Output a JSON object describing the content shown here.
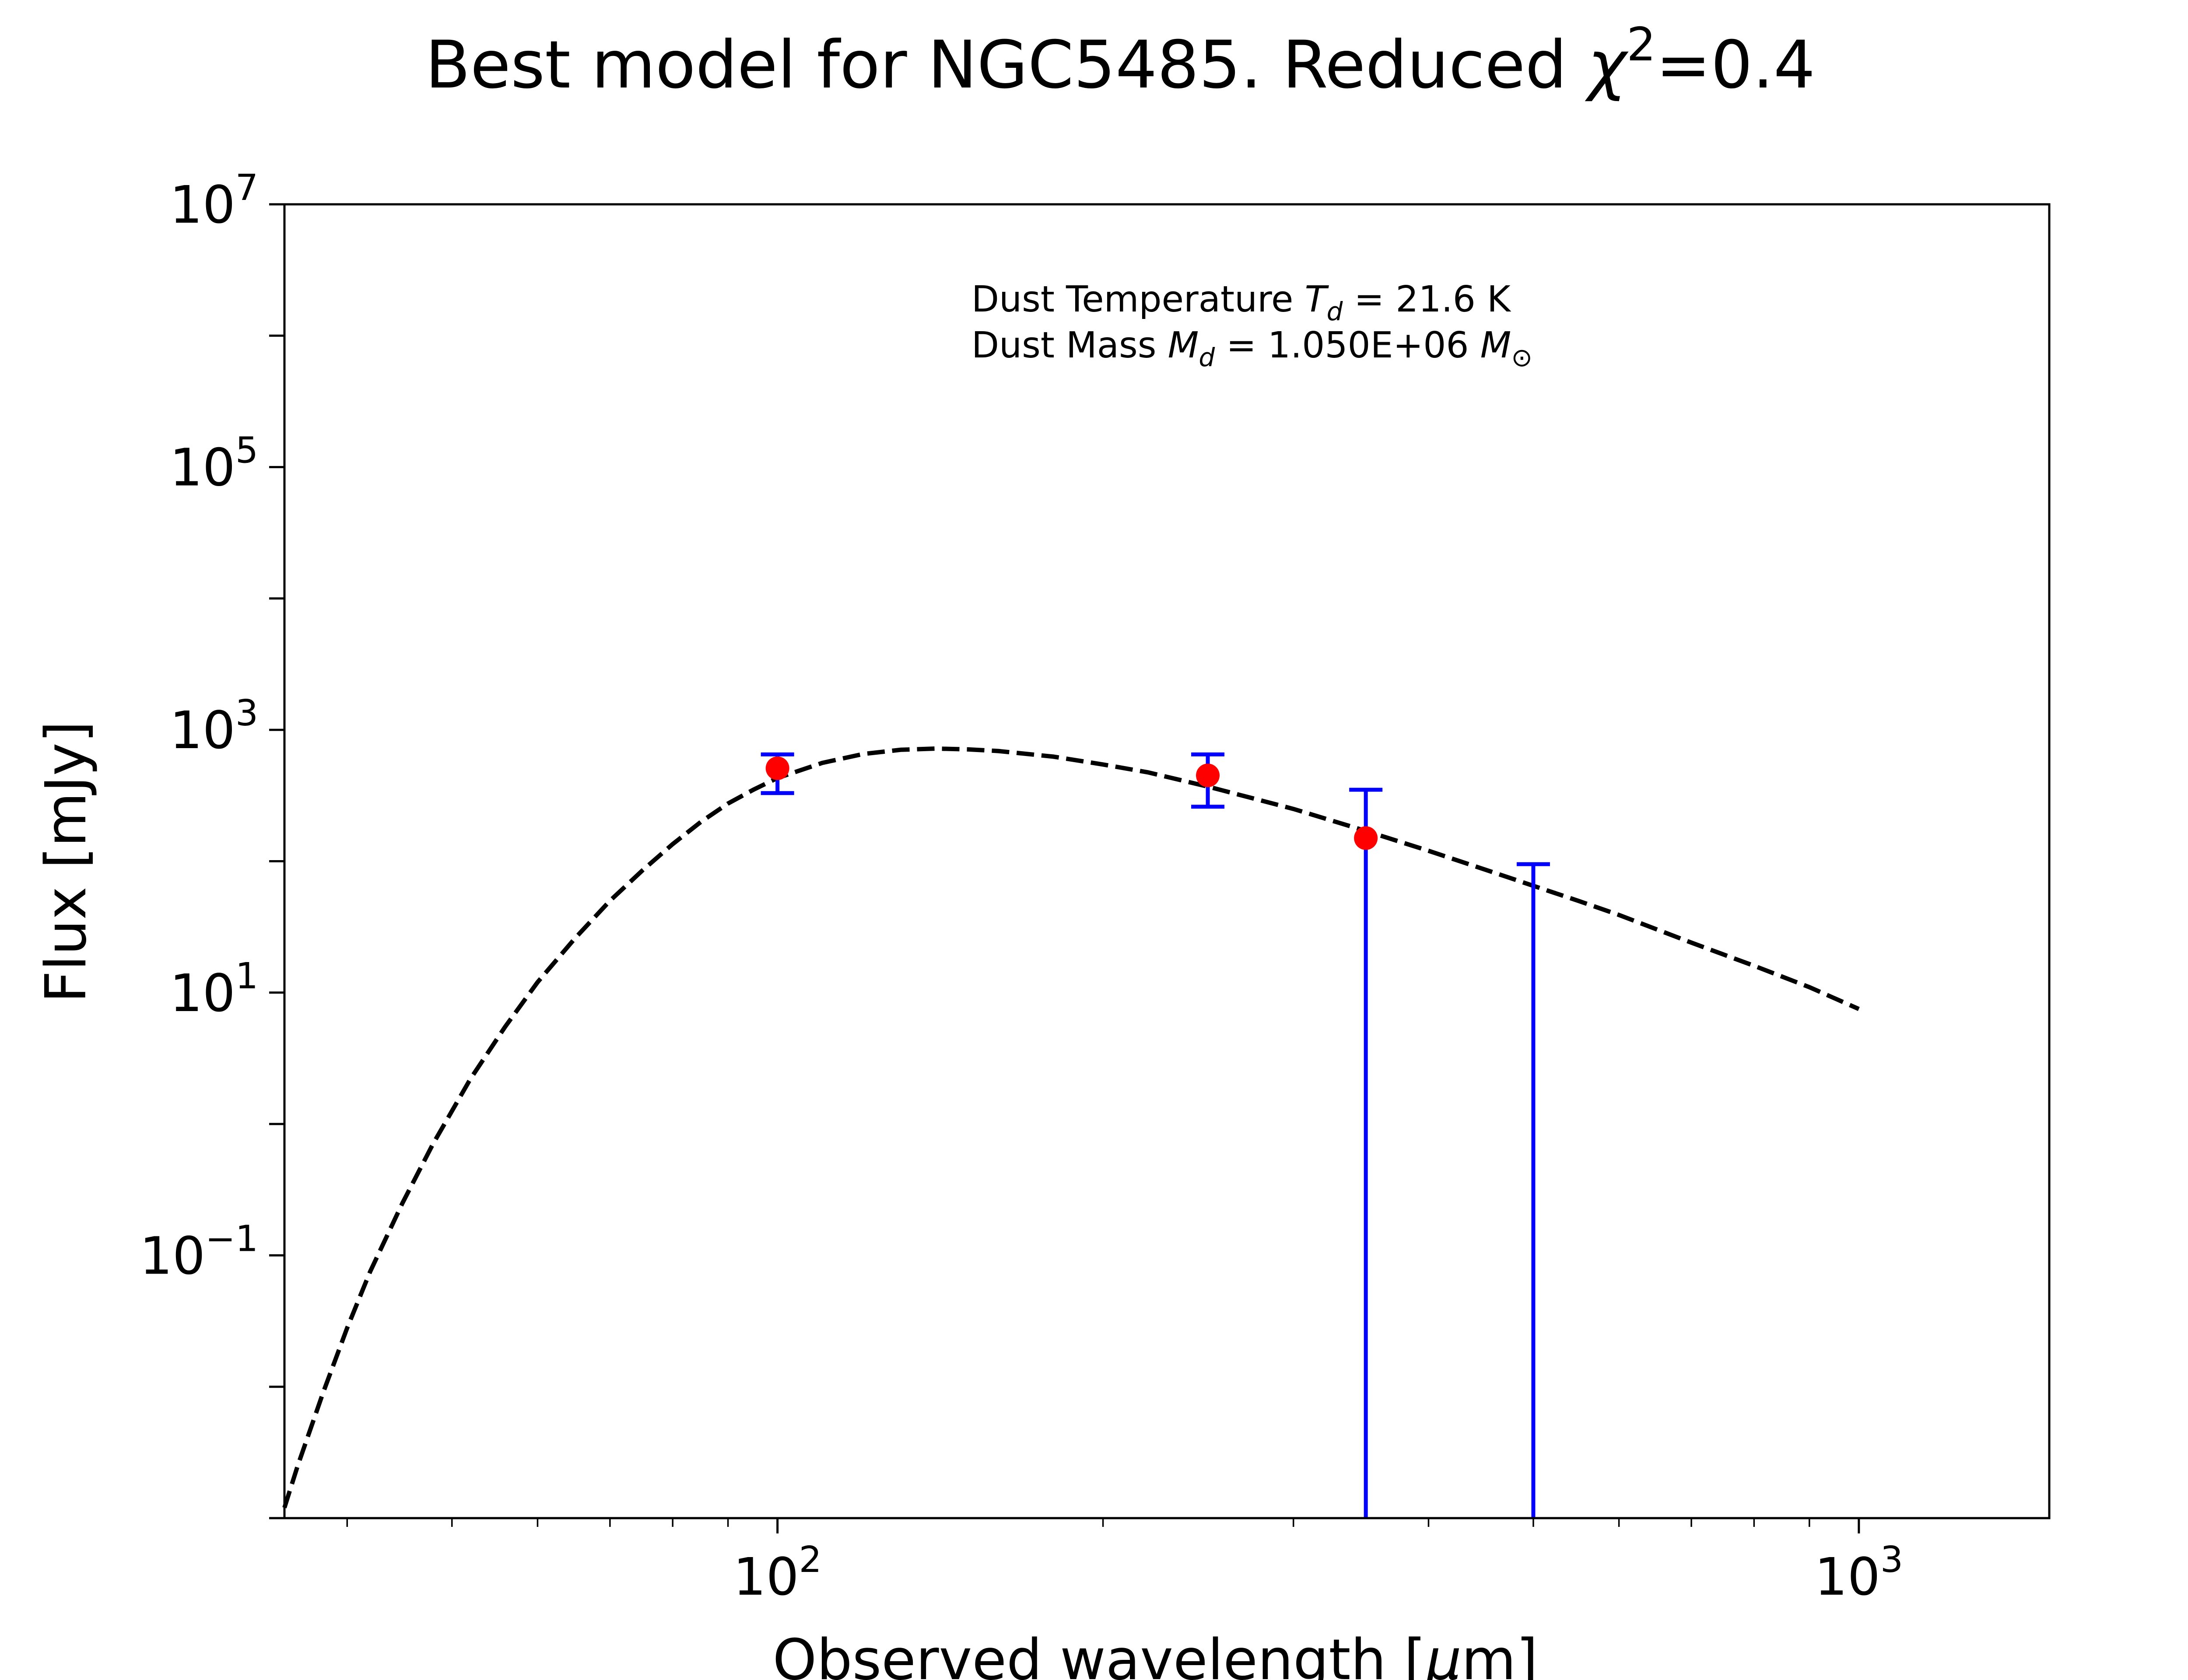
{
  "chart_data": {
    "type": "scatter",
    "title_main": "Best model for NGC5485. Reduced ",
    "title_symbol": "χ",
    "title_exp": "2",
    "title_value": "=0.4",
    "xlabel_main": "Observed wavelength [",
    "xlabel_mu": "μ",
    "xlabel_end": "m]",
    "ylabel": "Flux [mJy]",
    "xscale": "log",
    "yscale": "log",
    "xlim": [
      35,
      1500
    ],
    "ylim": [
      0.001,
      10000000
    ],
    "x_ticks": [
      {
        "value": 100,
        "base": "10",
        "exp": "2"
      },
      {
        "value": 1000,
        "base": "10",
        "exp": "3"
      }
    ],
    "y_ticks": [
      {
        "value": 0.1,
        "base": "10",
        "exp": "−1"
      },
      {
        "value": 10,
        "base": "10",
        "exp": "1"
      },
      {
        "value": 1000,
        "base": "10",
        "exp": "3"
      },
      {
        "value": 100000,
        "base": "10",
        "exp": "5"
      },
      {
        "value": 10000000,
        "base": "10",
        "exp": "7"
      }
    ],
    "annotation": {
      "temp_prefix": "Dust Temperature ",
      "temp_sym": "T",
      "temp_sub": "d",
      "temp_value": " = 21.6 K",
      "mass_prefix": "Dust Mass ",
      "mass_sym": "M",
      "mass_sub": "d",
      "mass_value": " = 1.050E+06 ",
      "mass_unit_sym": "M",
      "mass_unit_sub": "⊙"
    },
    "model_curve": {
      "x": [
        35,
        36,
        38,
        40,
        42,
        45,
        48,
        52,
        56,
        60,
        65,
        70,
        75,
        80,
        85,
        90,
        95,
        100,
        110,
        120,
        130,
        140,
        150,
        160,
        180,
        200,
        220,
        250,
        280,
        300,
        350,
        400,
        450,
        500,
        550,
        600,
        700,
        800,
        900,
        1000
      ],
      "y": [
        0.0012,
        0.0025,
        0.009,
        0.028,
        0.075,
        0.25,
        0.7,
        2.2,
        5.5,
        12,
        26,
        50,
        85,
        135,
        200,
        275,
        350,
        430,
        560,
        655,
        705,
        720,
        710,
        690,
        625,
        545,
        475,
        370,
        290,
        250,
        170,
        120,
        87,
        65,
        50,
        39,
        24,
        16,
        11,
        7.5
      ]
    },
    "points": [
      {
        "x": 100,
        "y": 510,
        "yerr_low": 330,
        "yerr_high": 650
      },
      {
        "x": 250,
        "y": 450,
        "yerr_low": 260,
        "yerr_high": 650
      },
      {
        "x": 350,
        "y": 150,
        "yerr_low": 0.001,
        "yerr_high": 350
      },
      {
        "x": 500,
        "y": null,
        "yerr_low": 0.001,
        "yerr_high": 95
      }
    ],
    "colors": {
      "model": "#000000",
      "points": "#ff0000",
      "errorbars": "#0000ff"
    },
    "grid": false,
    "legend": "none"
  }
}
